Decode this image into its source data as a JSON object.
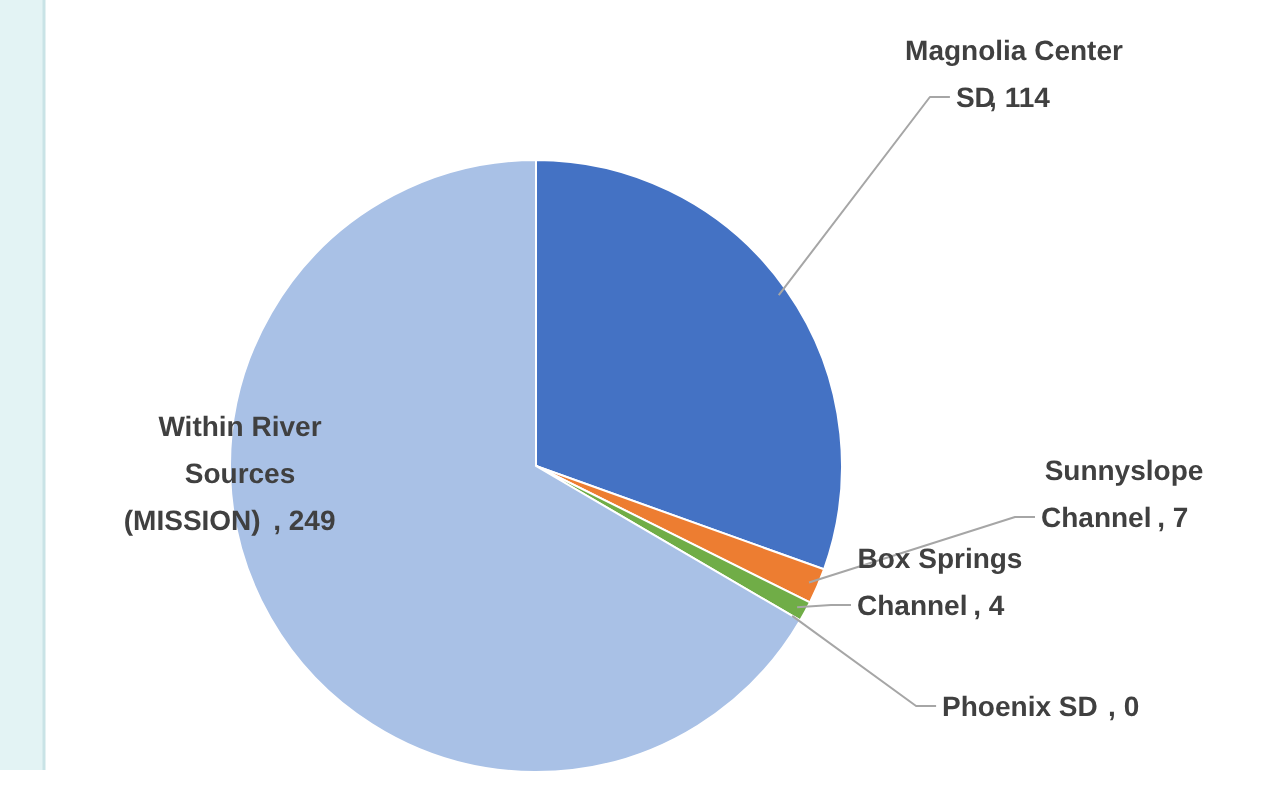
{
  "chart_data": {
    "type": "pie",
    "categories": [
      "Magnolia Center SD",
      "Sunnyslope Channel",
      "Box Springs Channel",
      "Phoenix SD",
      "Within River Sources (MISSION)"
    ],
    "values": [
      114,
      7,
      4,
      0,
      249
    ],
    "colors": [
      "#4472c4",
      "#ed7d31",
      "#70ad47",
      "#a5a5a5",
      "#a9c1e6"
    ],
    "value_labels": [
      ", 114",
      ", 7",
      ", 4",
      ", 0",
      ", 249"
    ]
  }
}
